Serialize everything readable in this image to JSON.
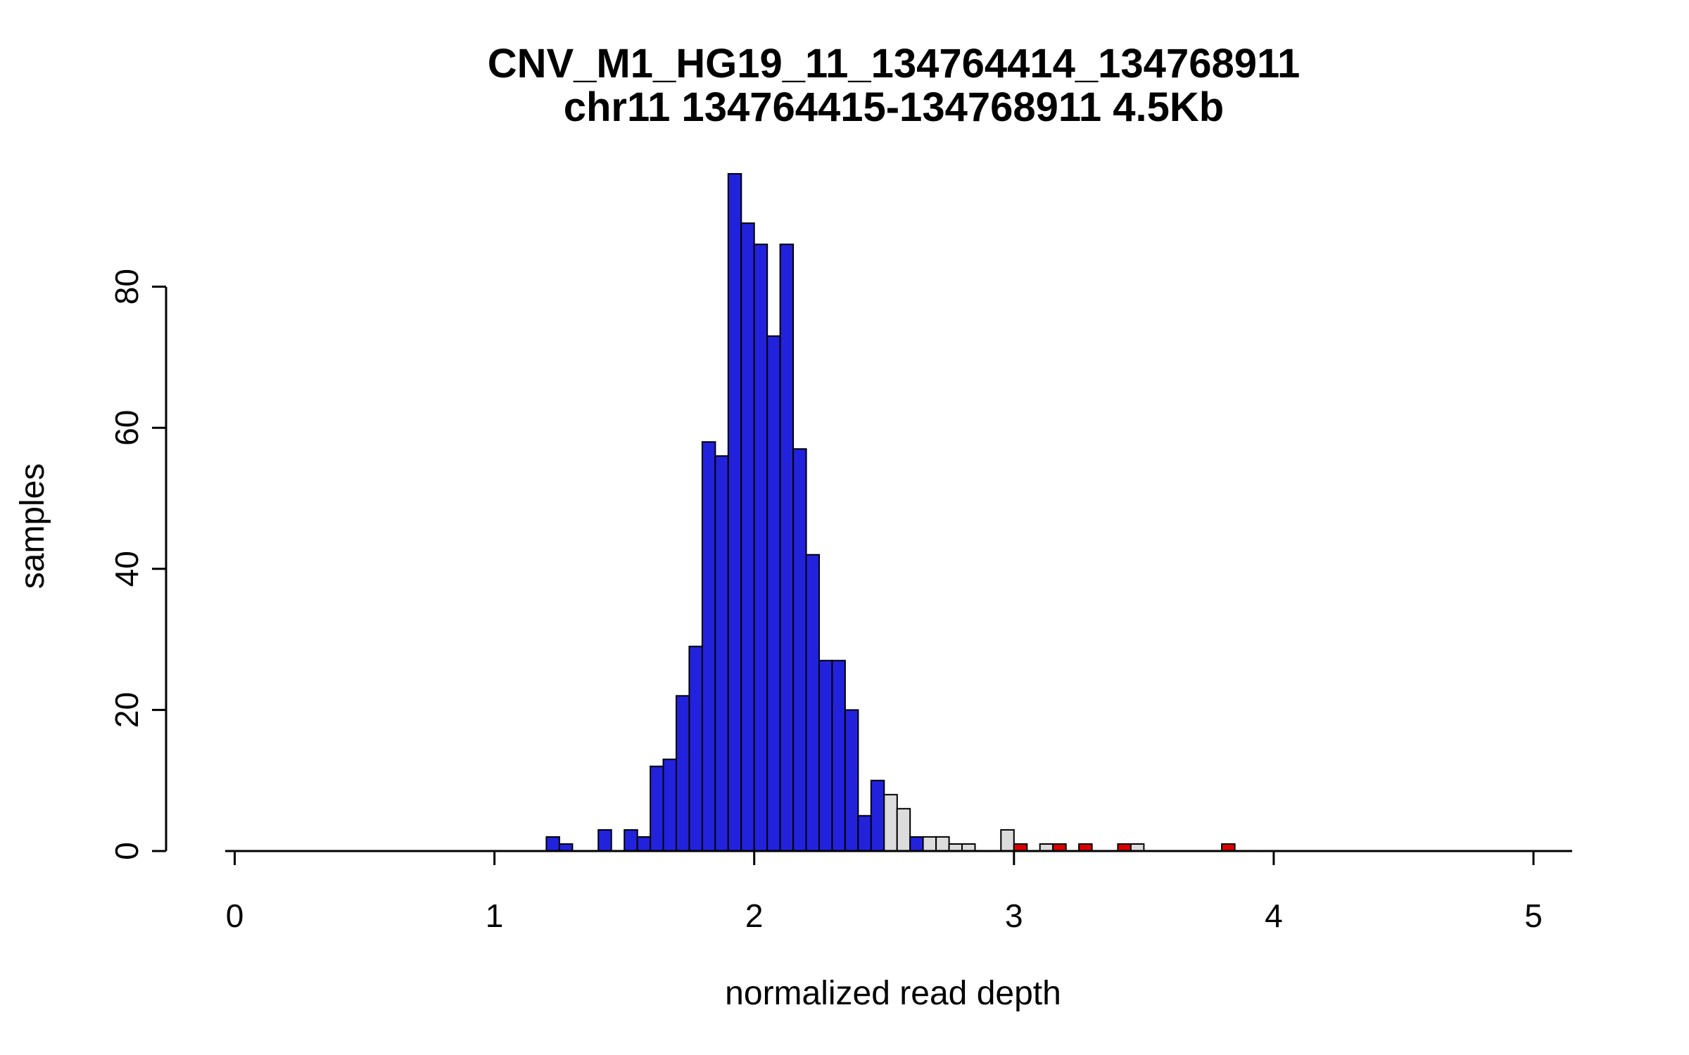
{
  "page": {
    "background": "#FFFFFF"
  },
  "chart_data": {
    "type": "bar",
    "subtype": "histogram",
    "title": "CNV_M1_HG19_11_134764414_134768911",
    "subtitle": "chr11 134764415-134768911 4.5Kb",
    "xlabel": "normalized read depth",
    "ylabel": "samples",
    "xlim": [
      -0.05,
      5.15
    ],
    "ylim": [
      0,
      96
    ],
    "xticks": [
      0,
      1,
      2,
      3,
      4,
      5
    ],
    "yticks": [
      0,
      20,
      40,
      60,
      80
    ],
    "bin_width": 0.05,
    "grid": false,
    "legend": "none",
    "colors": {
      "blue": "#2222DD",
      "gray": "#DCDCDC",
      "red": "#DD0000",
      "border": "#000000",
      "axis": "#000000"
    },
    "bars": [
      {
        "x": 1.2,
        "h": 2,
        "c": "blue"
      },
      {
        "x": 1.25,
        "h": 1,
        "c": "blue"
      },
      {
        "x": 1.4,
        "h": 3,
        "c": "blue"
      },
      {
        "x": 1.5,
        "h": 3,
        "c": "blue"
      },
      {
        "x": 1.55,
        "h": 2,
        "c": "blue"
      },
      {
        "x": 1.6,
        "h": 12,
        "c": "blue"
      },
      {
        "x": 1.65,
        "h": 13,
        "c": "blue"
      },
      {
        "x": 1.7,
        "h": 22,
        "c": "blue"
      },
      {
        "x": 1.75,
        "h": 29,
        "c": "blue"
      },
      {
        "x": 1.8,
        "h": 58,
        "c": "blue"
      },
      {
        "x": 1.85,
        "h": 56,
        "c": "blue"
      },
      {
        "x": 1.9,
        "h": 96,
        "c": "blue"
      },
      {
        "x": 1.95,
        "h": 89,
        "c": "blue"
      },
      {
        "x": 2.0,
        "h": 86,
        "c": "blue"
      },
      {
        "x": 2.05,
        "h": 73,
        "c": "blue"
      },
      {
        "x": 2.1,
        "h": 86,
        "c": "blue"
      },
      {
        "x": 2.15,
        "h": 57,
        "c": "blue"
      },
      {
        "x": 2.2,
        "h": 42,
        "c": "blue"
      },
      {
        "x": 2.25,
        "h": 27,
        "c": "blue"
      },
      {
        "x": 2.3,
        "h": 27,
        "c": "blue"
      },
      {
        "x": 2.35,
        "h": 20,
        "c": "blue"
      },
      {
        "x": 2.4,
        "h": 5,
        "c": "blue"
      },
      {
        "x": 2.45,
        "h": 10,
        "c": "blue"
      },
      {
        "x": 2.5,
        "h": 8,
        "c": "gray"
      },
      {
        "x": 2.55,
        "h": 6,
        "c": "gray"
      },
      {
        "x": 2.6,
        "h": 2,
        "c": "blue"
      },
      {
        "x": 2.65,
        "h": 2,
        "c": "gray"
      },
      {
        "x": 2.7,
        "h": 2,
        "c": "gray"
      },
      {
        "x": 2.75,
        "h": 1,
        "c": "gray"
      },
      {
        "x": 2.8,
        "h": 1,
        "c": "gray"
      },
      {
        "x": 2.95,
        "h": 3,
        "c": "gray"
      },
      {
        "x": 3.0,
        "h": 1,
        "c": "red"
      },
      {
        "x": 3.1,
        "h": 1,
        "c": "gray"
      },
      {
        "x": 3.15,
        "h": 1,
        "c": "red"
      },
      {
        "x": 3.25,
        "h": 1,
        "c": "red"
      },
      {
        "x": 3.4,
        "h": 1,
        "c": "red"
      },
      {
        "x": 3.45,
        "h": 1,
        "c": "gray"
      },
      {
        "x": 3.8,
        "h": 1,
        "c": "red"
      }
    ]
  }
}
